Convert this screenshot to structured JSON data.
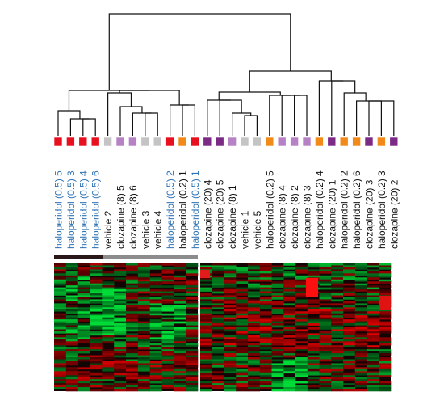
{
  "figure": {
    "colors": {
      "haloperidol_0_5": "#e8101e",
      "vehicle": "#c4c4c4",
      "clozapine_8": "#b782c5",
      "haloperidol_0_2": "#f28a1a",
      "clozapine_20": "#7b2a86",
      "label_blue": "#2e73b5",
      "label_black": "#111111",
      "bar_dark": "#2a1818",
      "bar_gray": "#8c8c8c"
    },
    "samples": [
      {
        "label": "haloperidol (0.5) 5",
        "group": "haloperidol_0_5",
        "label_color": "label_blue"
      },
      {
        "label": "haloperidol (0.5) 3",
        "group": "haloperidol_0_5",
        "label_color": "label_blue"
      },
      {
        "label": "haloperidol (0.5) 4",
        "group": "haloperidol_0_5",
        "label_color": "label_blue"
      },
      {
        "label": "haloperidol (0.5) 6",
        "group": "haloperidol_0_5",
        "label_color": "label_blue"
      },
      {
        "label": "vehicle 2",
        "group": "vehicle",
        "label_color": "label_black"
      },
      {
        "label": "clozapine (8) 5",
        "group": "clozapine_8",
        "label_color": "label_black"
      },
      {
        "label": "clozapine (8) 6",
        "group": "clozapine_8",
        "label_color": "label_black"
      },
      {
        "label": "vehicle 3",
        "group": "vehicle",
        "label_color": "label_black"
      },
      {
        "label": "vehicle 4",
        "group": "vehicle",
        "label_color": "label_black"
      },
      {
        "label": "haloperidol (0.5) 2",
        "group": "haloperidol_0_5",
        "label_color": "label_blue"
      },
      {
        "label": "haloperidol (0.2) 1",
        "group": "haloperidol_0_2",
        "label_color": "label_black"
      },
      {
        "label": "haloperidol (0.5) 1",
        "group": "haloperidol_0_5",
        "label_color": "label_blue"
      },
      {
        "label": "clozapine (20) 4",
        "group": "clozapine_20",
        "label_color": "label_black"
      },
      {
        "label": "clozapine (20) 5",
        "group": "clozapine_20",
        "label_color": "label_black"
      },
      {
        "label": "clozapine (8) 1",
        "group": "clozapine_8",
        "label_color": "label_black"
      },
      {
        "label": "vehicle 1",
        "group": "vehicle",
        "label_color": "label_black"
      },
      {
        "label": "vehicle 5",
        "group": "vehicle",
        "label_color": "label_black"
      },
      {
        "label": "haloperidol (0.2) 5",
        "group": "haloperidol_0_2",
        "label_color": "label_black"
      },
      {
        "label": "clozapine (8) 4",
        "group": "clozapine_8",
        "label_color": "label_black"
      },
      {
        "label": "clozapine (8) 2",
        "group": "clozapine_8",
        "label_color": "label_black"
      },
      {
        "label": "clozapine (8) 3",
        "group": "clozapine_8",
        "label_color": "label_black"
      },
      {
        "label": "haloperidol (0.2) 4",
        "group": "haloperidol_0_2",
        "label_color": "label_black"
      },
      {
        "label": "clozapine (20) 1",
        "group": "clozapine_20",
        "label_color": "label_black"
      },
      {
        "label": "haloperidol (0.2) 2",
        "group": "haloperidol_0_2",
        "label_color": "label_black"
      },
      {
        "label": "haloperidol (0.2) 6",
        "group": "haloperidol_0_2",
        "label_color": "label_black"
      },
      {
        "label": "clozapine (20) 3",
        "group": "clozapine_20",
        "label_color": "label_black"
      },
      {
        "label": "haloperidol (0.2) 3",
        "group": "haloperidol_0_2",
        "label_color": "label_black"
      },
      {
        "label": "clozapine (20) 2",
        "group": "clozapine_20",
        "label_color": "label_black"
      }
    ],
    "heatmap": {
      "palette": "green-black-red"
    }
  }
}
